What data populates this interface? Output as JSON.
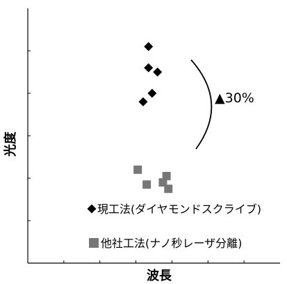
{
  "chart_data": {
    "type": "scatter",
    "title": "",
    "xlabel": "波長",
    "ylabel": "光度",
    "xlim": [
      0,
      7
    ],
    "ylim": [
      0,
      6
    ],
    "grid": false,
    "x_tick_labels": [],
    "y_tick_labels": [],
    "series": [
      {
        "name": "現工法(ダイヤモンドスクライブ)",
        "marker": "diamond",
        "color": "#000000",
        "points": [
          {
            "x": 3.35,
            "y": 5.1
          },
          {
            "x": 3.35,
            "y": 4.6
          },
          {
            "x": 3.6,
            "y": 4.5
          },
          {
            "x": 3.45,
            "y": 4.0
          },
          {
            "x": 3.2,
            "y": 3.8
          }
        ]
      },
      {
        "name": "他社工法(ナノ秒レーザ分離)",
        "marker": "square",
        "color": "#777777",
        "points": [
          {
            "x": 3.05,
            "y": 2.2
          },
          {
            "x": 3.3,
            "y": 1.85
          },
          {
            "x": 3.75,
            "y": 1.9
          },
          {
            "x": 3.85,
            "y": 2.05
          },
          {
            "x": 3.9,
            "y": 1.75
          }
        ]
      }
    ],
    "annotation": {
      "text": "▲30%",
      "bracket": "curved"
    },
    "legend_position": "bottom-center"
  }
}
